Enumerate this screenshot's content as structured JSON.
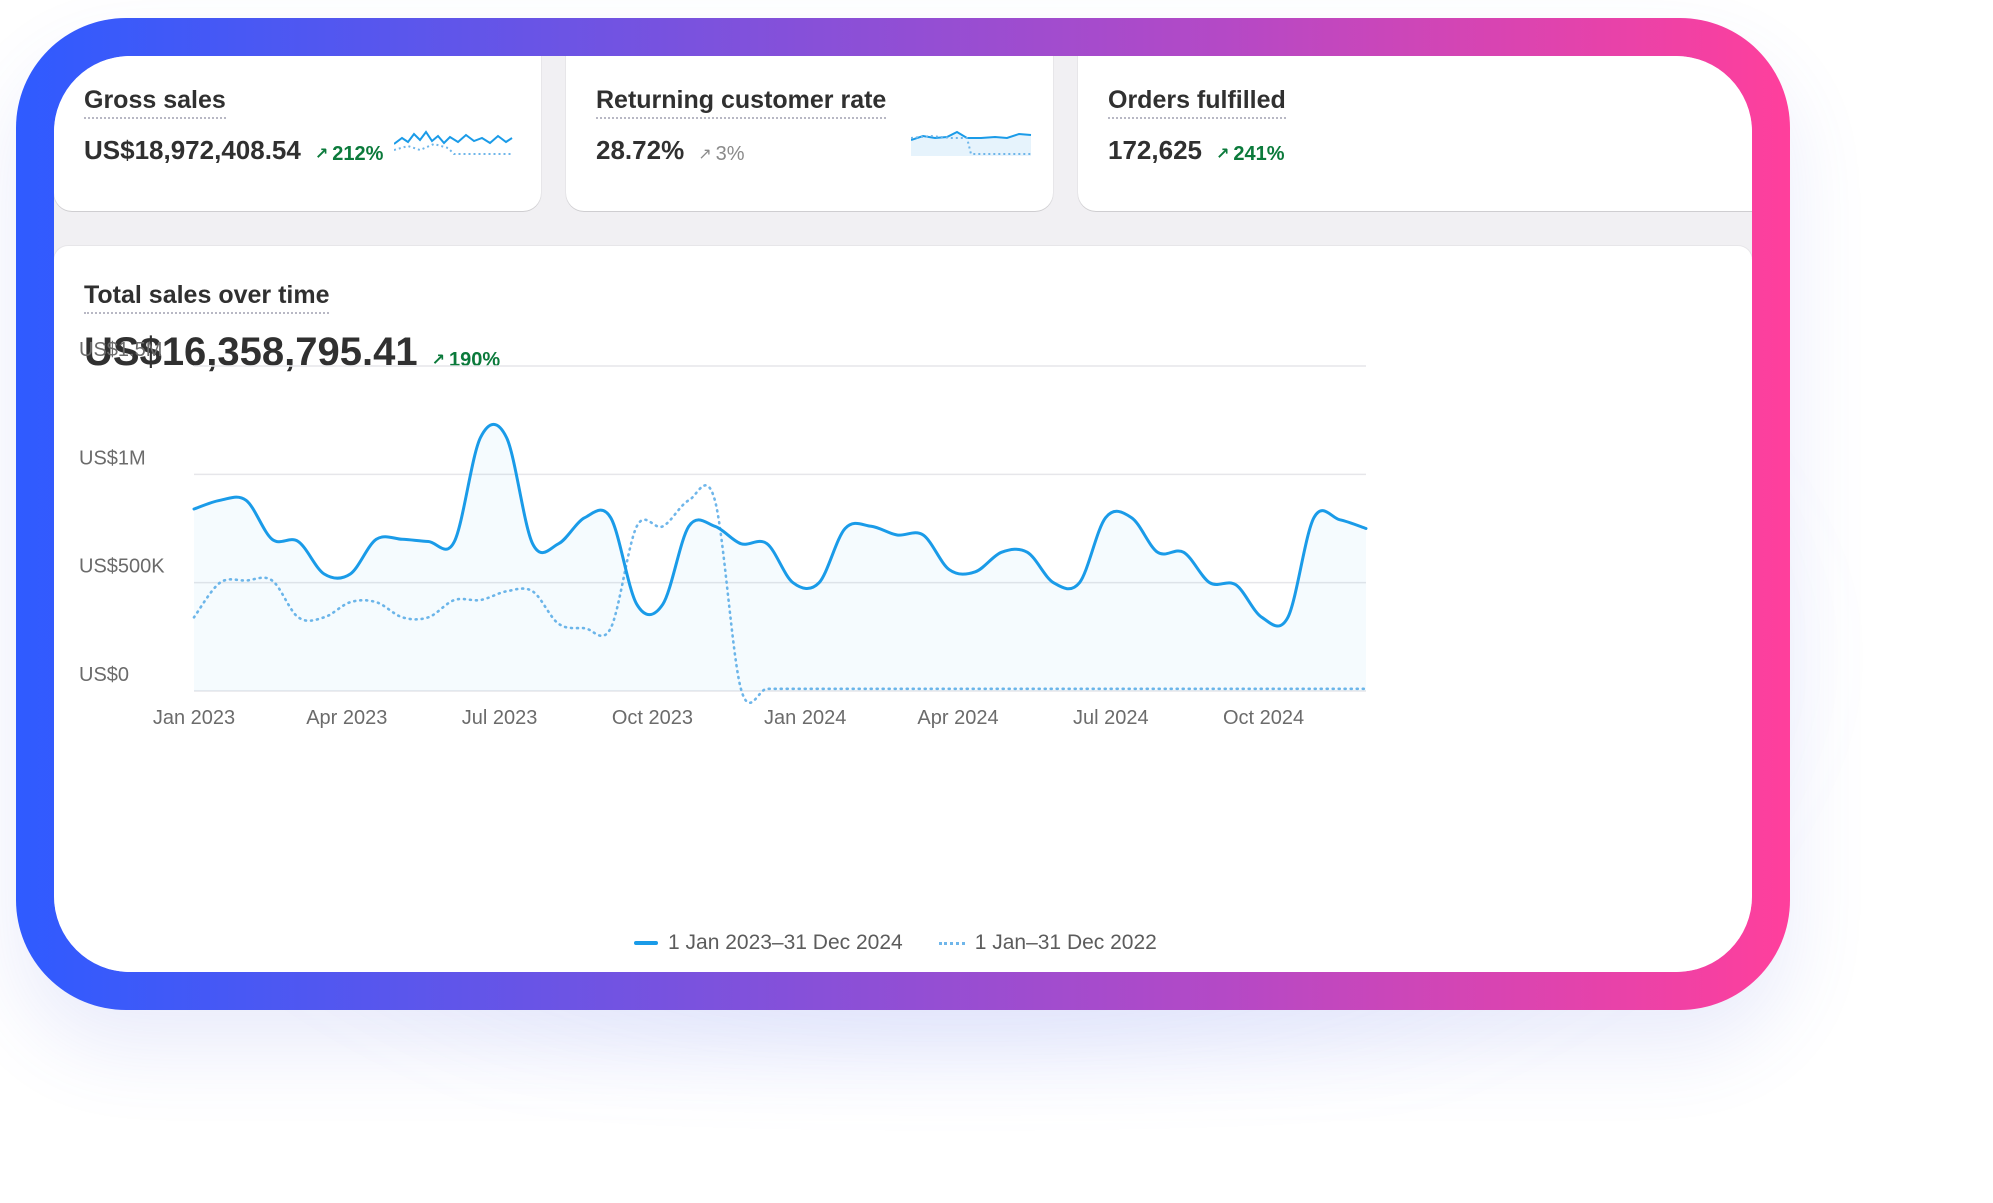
{
  "kpis": [
    {
      "title": "Gross sales",
      "value": "US$18,972,408.54",
      "delta": "212%",
      "trend": "up"
    },
    {
      "title": "Returning customer rate",
      "value": "28.72%",
      "delta": "3%",
      "trend": "neutral"
    },
    {
      "title": "Orders fulfilled",
      "value": "172,625",
      "delta": "241%",
      "trend": "up"
    }
  ],
  "main": {
    "title": "Total sales over time",
    "value": "US$16,358,795.41",
    "delta": "190%"
  },
  "colors": {
    "primary": "#1a9be8",
    "secondary": "#6fb6ea",
    "positive": "#0b7a3b"
  },
  "chart_data": {
    "type": "line",
    "yticks": [
      "US$0",
      "US$500K",
      "US$1M",
      "US$1.5M"
    ],
    "ylim": [
      0,
      1500000
    ],
    "x_labels": [
      "Jan 2023",
      "Apr 2023",
      "Jul 2023",
      "Oct 2023",
      "Jan 2024",
      "Apr 2024",
      "Jul 2024",
      "Oct 2024"
    ],
    "grid": true,
    "legend_position": "bottom-center",
    "series": [
      {
        "name": "1 Jan 2023–31 Dec 2024",
        "style": "solid",
        "values": [
          840000,
          880000,
          880000,
          700000,
          690000,
          540000,
          540000,
          700000,
          700000,
          690000,
          690000,
          1170000,
          1170000,
          680000,
          680000,
          800000,
          800000,
          400000,
          400000,
          760000,
          760000,
          680000,
          680000,
          500000,
          500000,
          750000,
          760000,
          720000,
          720000,
          560000,
          550000,
          640000,
          640000,
          500000,
          500000,
          800000,
          800000,
          640000,
          640000,
          500000,
          490000,
          340000,
          340000,
          800000,
          790000,
          750000
        ]
      },
      {
        "name": "1 Jan–31 Dec 2022",
        "style": "dotted",
        "values": [
          340000,
          500000,
          510000,
          510000,
          340000,
          340000,
          410000,
          410000,
          340000,
          340000,
          420000,
          420000,
          460000,
          460000,
          310000,
          290000,
          290000,
          760000,
          760000,
          880000,
          880000,
          10000,
          10000,
          10000,
          10000,
          10000,
          10000,
          10000,
          10000,
          10000,
          10000,
          10000,
          10000,
          10000,
          10000,
          10000,
          10000,
          10000,
          10000,
          10000,
          10000,
          10000,
          10000,
          10000,
          10000,
          10000
        ]
      }
    ]
  }
}
